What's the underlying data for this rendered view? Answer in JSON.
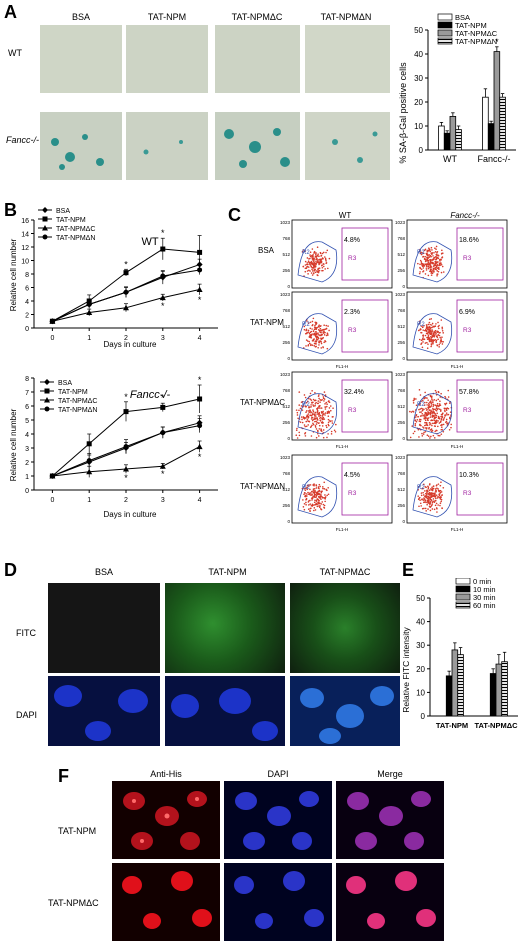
{
  "panels": {
    "A": {
      "label": "A",
      "columns": [
        "BSA",
        "TAT-NPM",
        "TAT-NPMΔC",
        "TAT-NPMΔN"
      ],
      "rows": [
        "WT",
        "Fancc-/-"
      ]
    },
    "B": {
      "label": "B"
    },
    "C": {
      "label": "C",
      "columns": [
        "WT",
        "Fancc-/-"
      ],
      "rows": [
        "BSA",
        "TAT-NPM",
        "TAT-NPMΔC",
        "TAT-NPMΔN"
      ],
      "gate_label": "R3",
      "gate_label_r2": "R2",
      "xaxis": "FL1-H",
      "yticks": [
        "1023",
        "768",
        "512",
        "256",
        "0"
      ],
      "percentages": [
        [
          "4.8%",
          "18.6%"
        ],
        [
          "2.3%",
          "6.9%"
        ],
        [
          "32.4%",
          "57.8%"
        ],
        [
          "4.5%",
          "10.3%"
        ]
      ]
    },
    "D": {
      "label": "D",
      "columns": [
        "BSA",
        "TAT-NPM",
        "TAT-NPMΔC"
      ],
      "rows": [
        "FITC",
        "DAPI"
      ]
    },
    "E": {
      "label": "E"
    },
    "F": {
      "label": "F",
      "columns": [
        "Anti-His",
        "DAPI",
        "Merge"
      ],
      "rows": [
        "TAT-NPM",
        "TAT-NPMΔC"
      ]
    }
  },
  "chart_data": [
    {
      "id": "A-bar",
      "type": "bar",
      "categories": [
        "WT",
        "Fancc-/-"
      ],
      "ylabel": "% SA-β-Gal positive cells",
      "ylim": [
        0,
        50
      ],
      "yticks": [
        "0",
        "10",
        "20",
        "30",
        "40",
        "50"
      ],
      "series": [
        {
          "name": "BSA",
          "values": [
            10,
            22
          ],
          "errors": [
            1.5,
            3.5
          ]
        },
        {
          "name": "TAT-NPM",
          "values": [
            7,
            11
          ],
          "errors": [
            1,
            1
          ]
        },
        {
          "name": "TAT-NPMΔC",
          "values": [
            14,
            41
          ],
          "errors": [
            1.5,
            2
          ]
        },
        {
          "name": "TAT-NPMΔN",
          "values": [
            8.5,
            22
          ],
          "errors": [
            1.5,
            1.5
          ]
        }
      ],
      "annotations": [
        "*"
      ],
      "legend": "top-right"
    },
    {
      "id": "B-wt",
      "type": "line",
      "title": "WT",
      "xlabel": "Days in culture",
      "ylabel": "Relative cell number",
      "x": [
        0,
        1,
        2,
        3,
        4
      ],
      "ylim": [
        0,
        16
      ],
      "yticks": [
        "0",
        "2",
        "4",
        "6",
        "8",
        "10",
        "12",
        "14",
        "16"
      ],
      "series": [
        {
          "name": "BSA",
          "values": [
            1,
            3.5,
            5.3,
            7.5,
            9.4
          ],
          "errors": [
            0,
            0.6,
            0.8,
            1,
            0.8
          ]
        },
        {
          "name": "TAT-NPM",
          "values": [
            1,
            4,
            8.2,
            11.7,
            11.2
          ],
          "errors": [
            0,
            0.9,
            0.5,
            1.6,
            2.5
          ]
        },
        {
          "name": "TAT-NPMΔC",
          "values": [
            1,
            2.3,
            3,
            4.5,
            5.7
          ],
          "errors": [
            0,
            0.5,
            0.6,
            0.5,
            0.8
          ]
        },
        {
          "name": "TAT-NPMΔN",
          "values": [
            1,
            3.5,
            5.3,
            7.7,
            8.6
          ],
          "errors": [
            0,
            0.6,
            0.7,
            0.7,
            0.7
          ]
        }
      ],
      "legend": "top-left"
    },
    {
      "id": "B-fancc",
      "type": "line",
      "title": "Fancc-/-",
      "xlabel": "Days in culture",
      "ylabel": "Relative cell number",
      "x": [
        0,
        1,
        2,
        3,
        4
      ],
      "ylim": [
        0,
        8
      ],
      "yticks": [
        "0",
        "1",
        "2",
        "3",
        "4",
        "5",
        "6",
        "7",
        "8"
      ],
      "series": [
        {
          "name": "BSA",
          "values": [
            1,
            2,
            3,
            4.1,
            4.8
          ],
          "errors": [
            0,
            0.5,
            0.4,
            0.4,
            0.5
          ]
        },
        {
          "name": "TAT-NPM",
          "values": [
            1,
            3.3,
            5.6,
            5.9,
            6.5
          ],
          "errors": [
            0,
            0.7,
            0.7,
            0.3,
            1
          ]
        },
        {
          "name": "TAT-NPMΔC",
          "values": [
            1,
            1.3,
            1.5,
            1.7,
            3.1
          ],
          "errors": [
            0,
            0.4,
            0.3,
            0.2,
            0.4
          ]
        },
        {
          "name": "TAT-NPMΔN",
          "values": [
            1,
            2.1,
            3.1,
            4.1,
            4.6
          ],
          "errors": [
            0,
            0.5,
            0.5,
            0.4,
            0.5
          ]
        }
      ],
      "legend": "top-left"
    },
    {
      "id": "E-bar",
      "type": "bar",
      "categories": [
        "TAT-NPM",
        "TAT-NPMΔC"
      ],
      "ylabel": "Relative FITC intensity",
      "ylim": [
        0,
        50
      ],
      "yticks": [
        "0",
        "10",
        "20",
        "30",
        "40",
        "50"
      ],
      "series": [
        {
          "name": "0 min",
          "values": [
            0,
            0
          ],
          "errors": [
            0,
            0
          ]
        },
        {
          "name": "10 min",
          "values": [
            17,
            18
          ],
          "errors": [
            2,
            2
          ]
        },
        {
          "name": "30 min",
          "values": [
            28,
            22
          ],
          "errors": [
            3,
            4
          ]
        },
        {
          "name": "60 min",
          "values": [
            26,
            23
          ],
          "errors": [
            3,
            4
          ]
        }
      ],
      "legend": "top-right"
    }
  ]
}
